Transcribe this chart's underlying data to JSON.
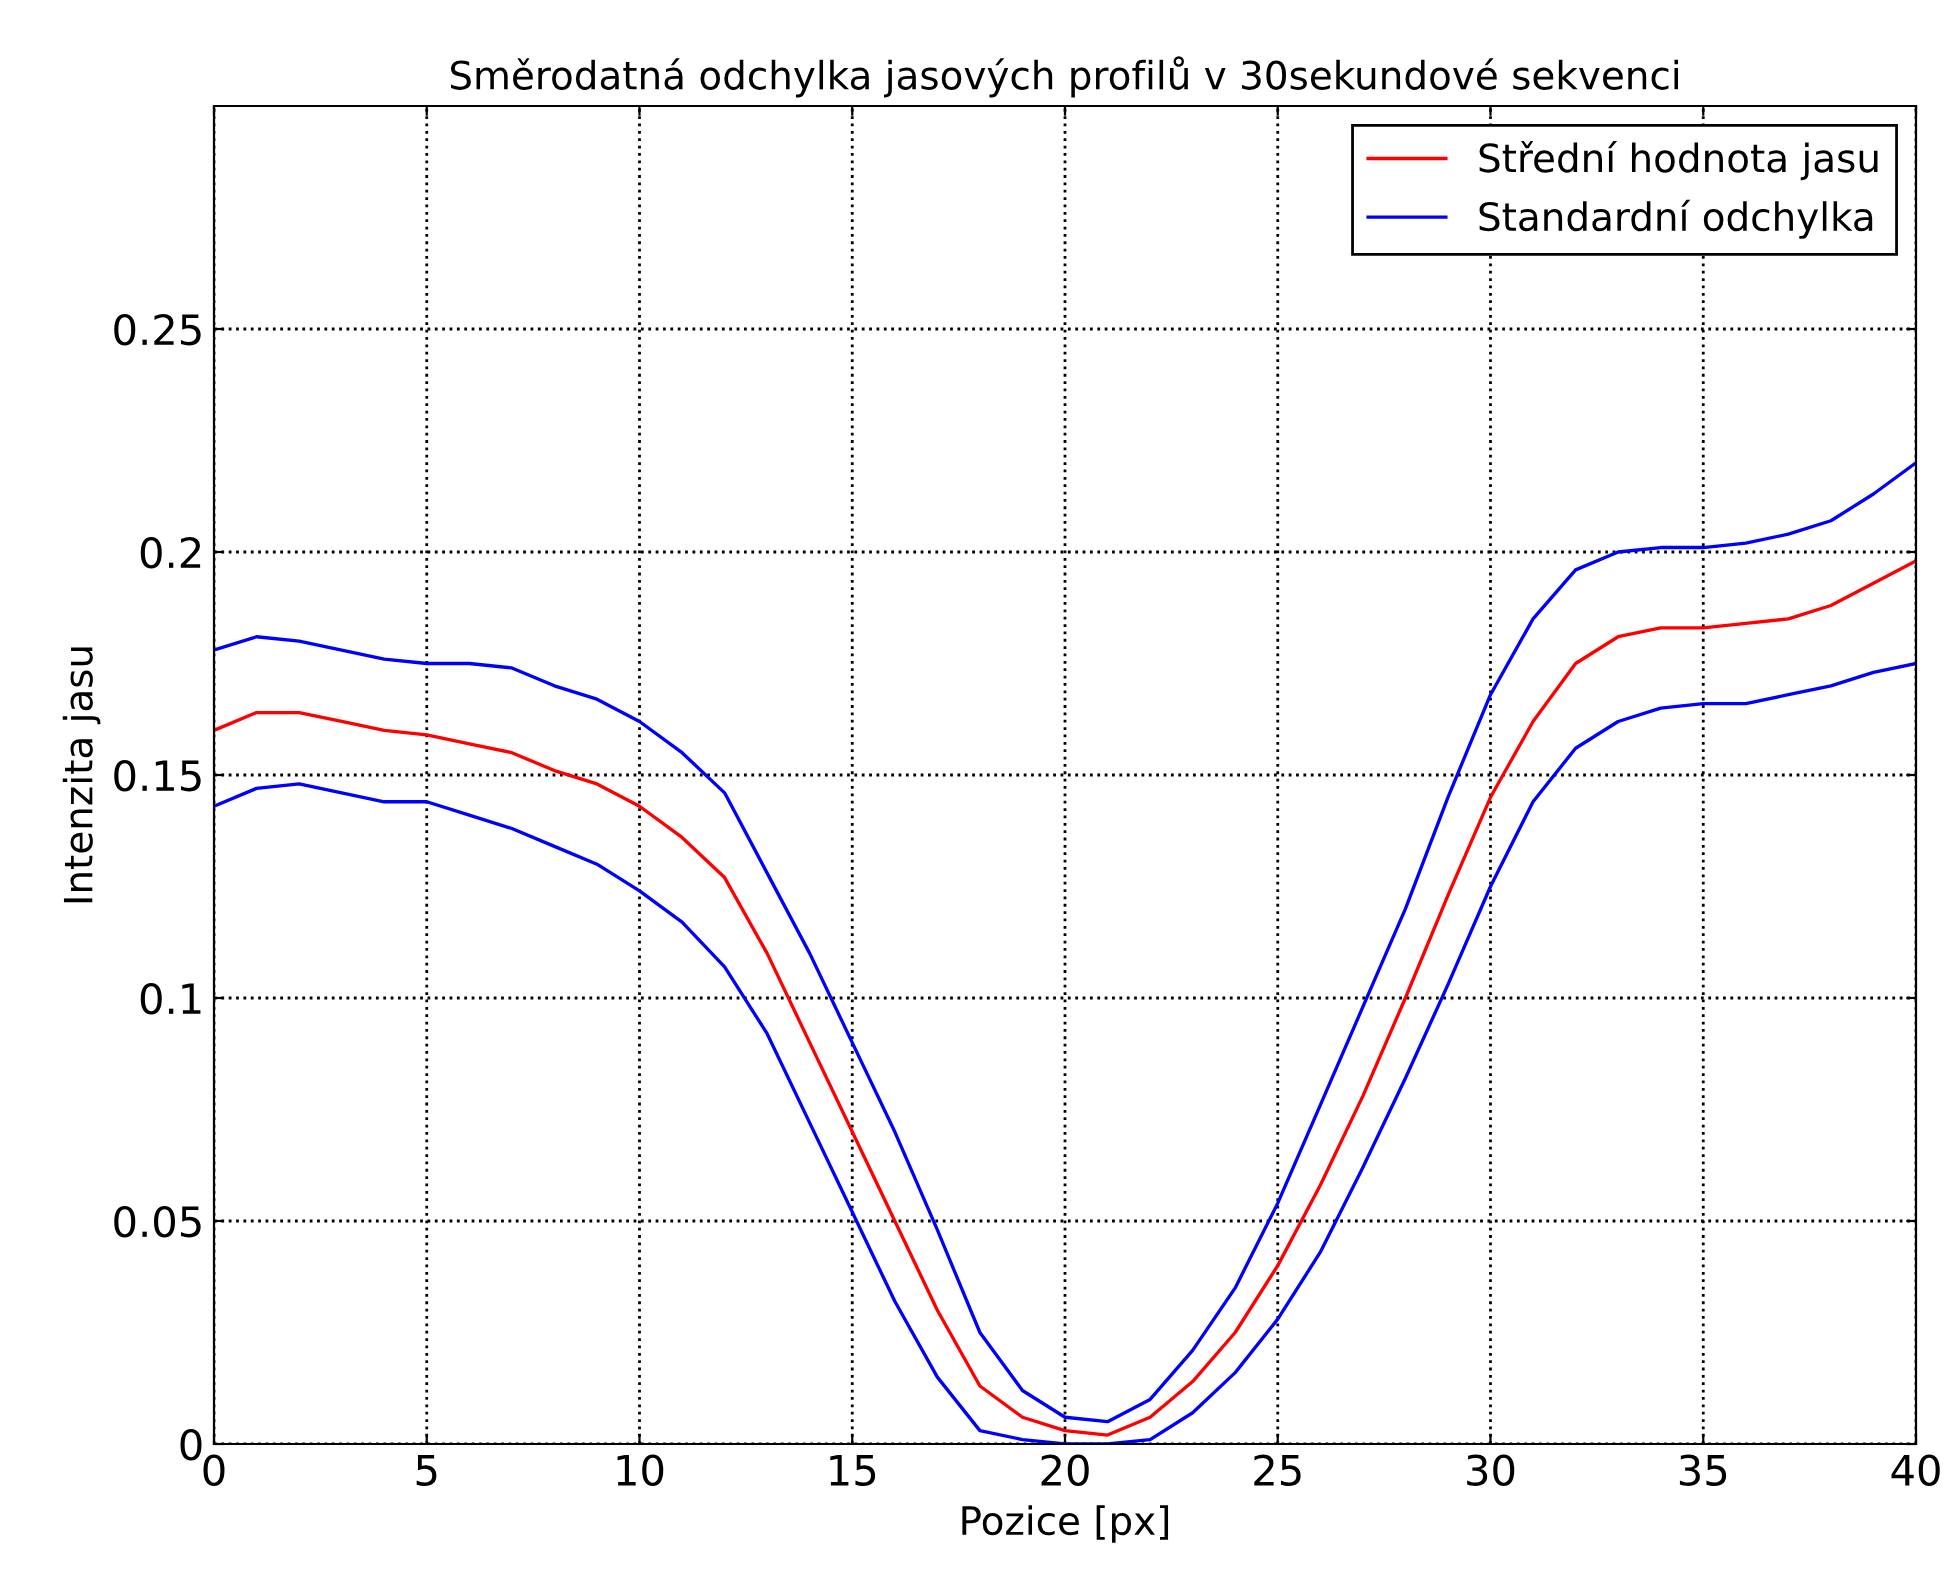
{
  "chart_data": {
    "type": "line",
    "title": "Směrodatná odchylka jasových profilů v 30sekundové sekvenci",
    "xlabel": "Pozice [px]",
    "ylabel": "Intenzita jasu",
    "x": [
      0,
      1,
      2,
      3,
      4,
      5,
      6,
      7,
      8,
      9,
      10,
      11,
      12,
      13,
      14,
      15,
      16,
      17,
      18,
      19,
      20,
      21,
      22,
      23,
      24,
      25,
      26,
      27,
      28,
      29,
      30,
      31,
      32,
      33,
      34,
      35,
      36,
      37,
      38,
      39,
      40
    ],
    "series": [
      {
        "name": "Střední hodnota jasu",
        "color": "#ff0000",
        "values": [
          0.16,
          0.164,
          0.164,
          0.162,
          0.16,
          0.159,
          0.157,
          0.155,
          0.151,
          0.148,
          0.143,
          0.136,
          0.127,
          0.11,
          0.09,
          0.07,
          0.05,
          0.03,
          0.013,
          0.006,
          0.003,
          0.002,
          0.006,
          0.014,
          0.025,
          0.04,
          0.058,
          0.078,
          0.1,
          0.123,
          0.145,
          0.162,
          0.175,
          0.181,
          0.183,
          0.183,
          0.184,
          0.185,
          0.188,
          0.193,
          0.198
        ]
      },
      {
        "name": "Standardní odchylka",
        "color": "#0000ff",
        "values": [
          0.178,
          0.181,
          0.18,
          0.178,
          0.176,
          0.175,
          0.175,
          0.174,
          0.17,
          0.167,
          0.162,
          0.155,
          0.146,
          0.128,
          0.11,
          0.09,
          0.07,
          0.048,
          0.025,
          0.012,
          0.006,
          0.005,
          0.01,
          0.021,
          0.035,
          0.054,
          0.076,
          0.098,
          0.12,
          0.145,
          0.168,
          0.185,
          0.196,
          0.2,
          0.201,
          0.201,
          0.202,
          0.204,
          0.207,
          0.213,
          0.22
        ]
      },
      {
        "color": "#0000ff",
        "values": [
          0.143,
          0.147,
          0.148,
          0.146,
          0.144,
          0.144,
          0.141,
          0.138,
          0.134,
          0.13,
          0.124,
          0.117,
          0.107,
          0.092,
          0.072,
          0.052,
          0.032,
          0.015,
          0.003,
          0.001,
          0.0,
          0.0,
          0.001,
          0.007,
          0.016,
          0.028,
          0.043,
          0.062,
          0.082,
          0.103,
          0.125,
          0.144,
          0.156,
          0.162,
          0.165,
          0.166,
          0.166,
          0.168,
          0.17,
          0.173,
          0.175
        ]
      }
    ],
    "xlim": [
      0,
      40
    ],
    "ylim": [
      0,
      0.3
    ],
    "xticks": [
      0,
      5,
      10,
      15,
      20,
      25,
      30,
      35,
      40
    ],
    "yticks": [
      0,
      0.05,
      0.1,
      0.15,
      0.2,
      0.25
    ],
    "grid": true,
    "legend": "top right",
    "line_style": "solid"
  }
}
